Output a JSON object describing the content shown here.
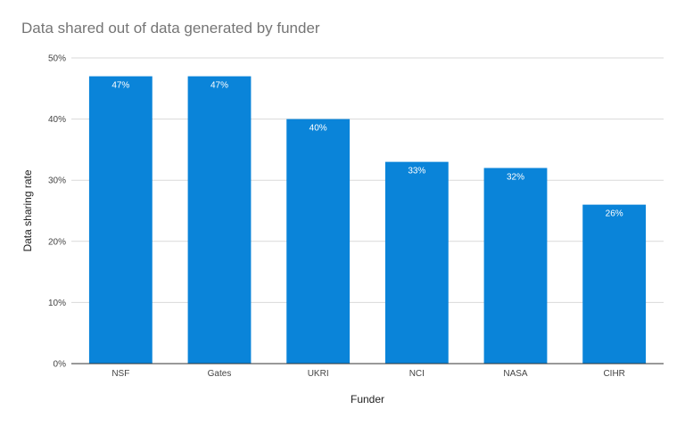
{
  "chart_data": {
    "type": "bar",
    "title": "Data shared out of data generated by funder",
    "xlabel": "Funder",
    "ylabel": "Data sharing rate",
    "categories": [
      "NSF",
      "Gates",
      "UKRI",
      "NCI",
      "NASA",
      "CIHR"
    ],
    "values": [
      47,
      47,
      40,
      33,
      32,
      26
    ],
    "value_labels": [
      "47%",
      "47%",
      "40%",
      "33%",
      "32%",
      "26%"
    ],
    "ylim": [
      0,
      50
    ],
    "yticks": [
      0,
      10,
      20,
      30,
      40,
      50
    ],
    "ytick_labels": [
      "0%",
      "10%",
      "20%",
      "30%",
      "40%",
      "50%"
    ],
    "grid": true,
    "legend": "none",
    "bar_color": "#0a84d9",
    "grid_color": "#d9d9d9",
    "axis_color": "#333333"
  }
}
